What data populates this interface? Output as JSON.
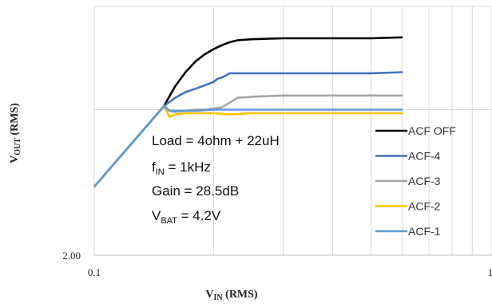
{
  "chart_data": {
    "type": "line",
    "xscale": "log",
    "yscale": "log",
    "xlim": [
      0.1,
      1
    ],
    "ylim": [
      2.0,
      4.0
    ],
    "x_tick_labels": [
      "0.1",
      "1"
    ],
    "y_tick_labels": [
      "2.00"
    ],
    "xlabel": {
      "main": "V",
      "sub": "IN",
      "suffix": " (RMS)"
    },
    "ylabel": {
      "main": "V",
      "sub": "OUT",
      "suffix": " (RMS)"
    },
    "grid": true,
    "legend_position": "right",
    "annotations": [
      {
        "main": "Load = 4ohm + 22uH",
        "sub": "",
        "suffix": ""
      },
      {
        "main": "f",
        "sub": "IN",
        "suffix": " = 1kHz"
      },
      {
        "main": "Gain = 28.5dB",
        "sub": "",
        "suffix": ""
      },
      {
        "main": "V",
        "sub": "BAT",
        "suffix": " = 4.2V"
      }
    ],
    "series": [
      {
        "name": "ACF OFF",
        "color": "#000000",
        "x": [
          0.1,
          0.15,
          0.16,
          0.17,
          0.18,
          0.19,
          0.2,
          0.21,
          0.22,
          0.23,
          0.25,
          0.3,
          0.4,
          0.5,
          0.6
        ],
        "y": [
          2.42,
          3.03,
          3.2,
          3.33,
          3.43,
          3.5,
          3.55,
          3.59,
          3.62,
          3.64,
          3.65,
          3.66,
          3.66,
          3.66,
          3.67
        ]
      },
      {
        "name": "ACF-4",
        "color": "#4472C4",
        "x": [
          0.1,
          0.15,
          0.16,
          0.17,
          0.18,
          0.19,
          0.2,
          0.205,
          0.21,
          0.215,
          0.22,
          0.25,
          0.3,
          0.4,
          0.5,
          0.6
        ],
        "y": [
          2.42,
          3.03,
          3.1,
          3.15,
          3.18,
          3.21,
          3.24,
          3.27,
          3.28,
          3.3,
          3.32,
          3.32,
          3.32,
          3.32,
          3.32,
          3.33
        ]
      },
      {
        "name": "ACF-3",
        "color": "#A5A5A5",
        "x": [
          0.1,
          0.15,
          0.155,
          0.16,
          0.17,
          0.18,
          0.19,
          0.2,
          0.21,
          0.22,
          0.23,
          0.25,
          0.3,
          0.4,
          0.5,
          0.6
        ],
        "y": [
          2.42,
          3.03,
          2.99,
          2.98,
          2.99,
          3.0,
          3.0,
          3.01,
          3.02,
          3.06,
          3.1,
          3.11,
          3.12,
          3.12,
          3.12,
          3.12
        ]
      },
      {
        "name": "ACF-2",
        "color": "#FFC000",
        "x": [
          0.1,
          0.15,
          0.155,
          0.16,
          0.17,
          0.18,
          0.2,
          0.22,
          0.25,
          0.3,
          0.4,
          0.5,
          0.6
        ],
        "y": [
          2.42,
          3.03,
          2.94,
          2.96,
          2.97,
          2.97,
          2.97,
          2.96,
          2.97,
          2.97,
          2.97,
          2.97,
          2.97
        ]
      },
      {
        "name": "ACF-1",
        "color": "#5B9BD5",
        "x": [
          0.1,
          0.15,
          0.155,
          0.16,
          0.18,
          0.2,
          0.22,
          0.25,
          0.3,
          0.4,
          0.5,
          0.6
        ],
        "y": [
          2.42,
          3.03,
          2.99,
          2.99,
          2.99,
          3.0,
          3.0,
          3.0,
          3.0,
          3.0,
          3.0,
          3.0
        ]
      }
    ]
  }
}
